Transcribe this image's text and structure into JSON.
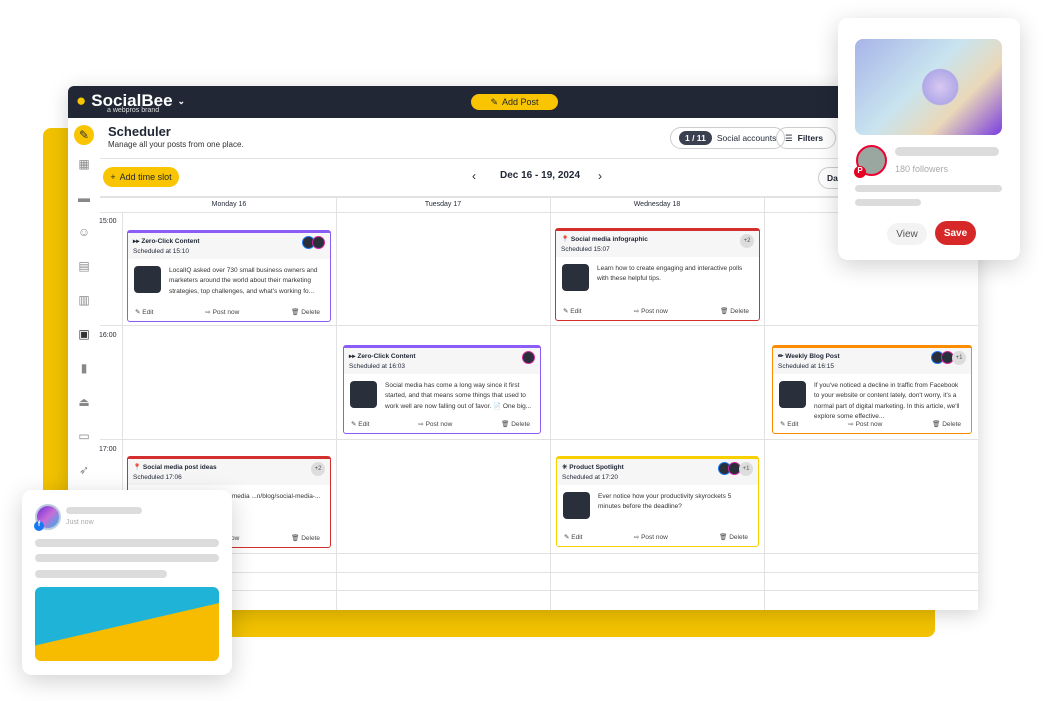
{
  "colors": {
    "accent": "#f8c500",
    "header": "#212735",
    "purple": "#8b5cf6",
    "red": "#d32f2f",
    "orange": "#fb8c00",
    "yellow": "#f8d000"
  },
  "header": {
    "brand": "SocialBee",
    "brand_sub": "a webpros brand",
    "add_post": "Add Post"
  },
  "page": {
    "title": "Scheduler",
    "subtitle": "Manage all your posts from one place.",
    "accounts_count": "1 / 11",
    "accounts_label": "Social accounts",
    "filters": "Filters",
    "add_time_slot": "Add time slot",
    "date_range": "Dec 16 - 19, 2024",
    "view_button": "Da"
  },
  "days": [
    "Monday 16",
    "Tuesday 17",
    "Wednesday 18"
  ],
  "times": [
    "15:00",
    "16:00",
    "17:00"
  ],
  "cards": [
    {
      "category": "Zero-Click Content",
      "icon": "▸▸",
      "scheduled": "Scheduled at 15:10",
      "text": "LocalIQ asked over 730 small business owners and marketers around the world about their marketing strategies, top challenges, and what's working fo...",
      "color": "#8b5cf6",
      "extra": "",
      "avatars": [
        "fb",
        "ig"
      ]
    },
    {
      "category": "Social media infographic",
      "icon": "📍",
      "scheduled": "Scheduled 15:07",
      "text": "Learn how to create engaging and interactive polls with these helpful tips.",
      "color": "#d32f2f",
      "extra": "+2",
      "avatars": []
    },
    {
      "category": "Zero-Click Content",
      "icon": "▸▸",
      "scheduled": "Scheduled at 16:03",
      "text": "Social media has come a long way since it first started, and that means some things that used to work well are now falling out of favor. 📄 One big...",
      "color": "#8b5cf6",
      "extra": "",
      "avatars": [
        "ig"
      ]
    },
    {
      "category": "Weekly Blog Post",
      "icon": "✏",
      "scheduled": "Scheduled at 16:15",
      "text": "If you've noticed a decline in traffic from Facebook to your website or content lately, don't worry, it's a normal part of digital marketing. In this article, we'll explore some effective...",
      "color": "#fb8c00",
      "extra": "+1",
      "avatars": [
        "fb",
        "ig"
      ]
    },
    {
      "category": "Social media post ideas",
      "icon": "📍",
      "scheduled": "Scheduled 17:06",
      "text": "...lete guide on social media ...n/blog/social-media-...",
      "color": "#d32f2f",
      "extra": "+2",
      "avatars": []
    },
    {
      "category": "Product Spotlight",
      "icon": "✳",
      "scheduled": "Scheduled at 17:20",
      "text": "Ever notice how your productivity skyrockets 5 minutes before the deadline?",
      "color": "#f8d000",
      "extra": "+1",
      "avatars": [
        "fb",
        "ig"
      ]
    }
  ],
  "card_actions": {
    "edit": "Edit",
    "post_now": "Post now",
    "delete": "Delete"
  },
  "pinterest_card": {
    "followers": "180 followers",
    "view": "View",
    "save": "Save"
  },
  "facebook_card": {
    "time": "Just now"
  }
}
